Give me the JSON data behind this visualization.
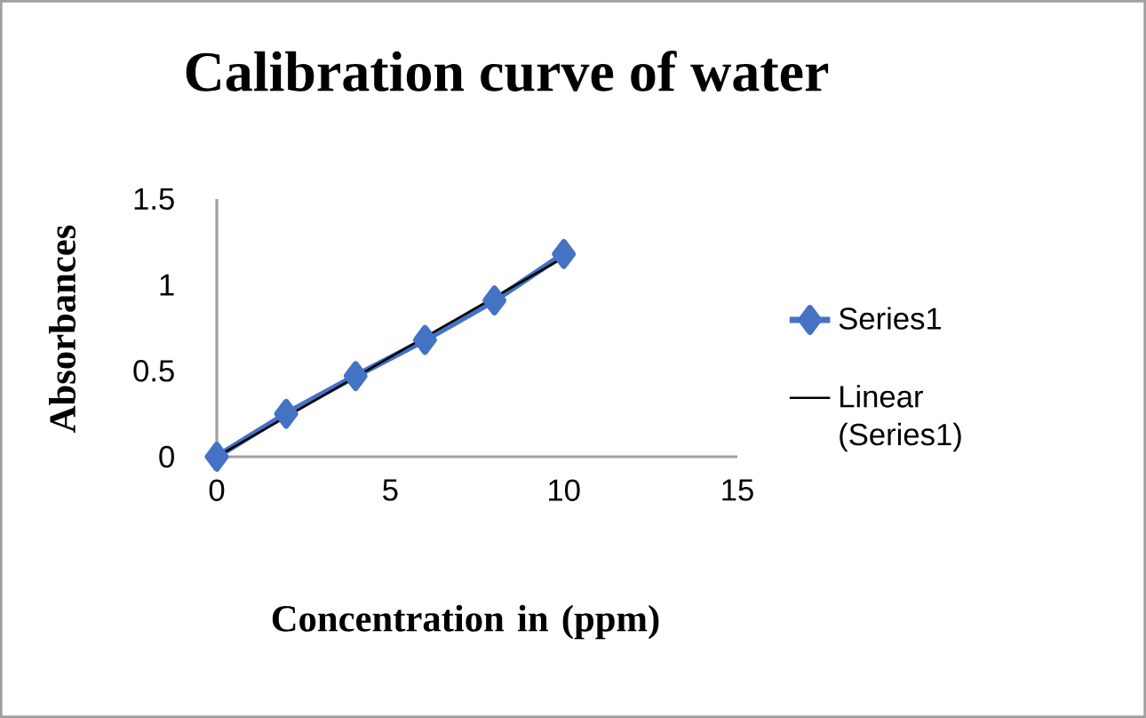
{
  "chart_data": {
    "type": "line",
    "title": "Calibration curve of water",
    "xlabel": "Concentration in (ppm)",
    "ylabel": "Absorbances",
    "xlim": [
      0,
      15
    ],
    "xticks": [
      0,
      5,
      10,
      15
    ],
    "ylim": [
      0,
      1.5
    ],
    "yticks": [
      0,
      0.5,
      1,
      1.5
    ],
    "grid": false,
    "legend": "right",
    "series": [
      {
        "name": "Series1",
        "color": "#4472c4",
        "x": [
          0,
          2,
          4,
          6,
          8,
          10
        ],
        "values": [
          0.0,
          0.25,
          0.47,
          0.68,
          0.91,
          1.18
        ],
        "marker": "diamond",
        "line_style": "solid"
      },
      {
        "name": "Linear (Series1)",
        "color": "#000000",
        "x": [
          0,
          10
        ],
        "values": [
          0.0,
          1.16
        ],
        "marker": "none",
        "line_style": "solid"
      }
    ]
  }
}
